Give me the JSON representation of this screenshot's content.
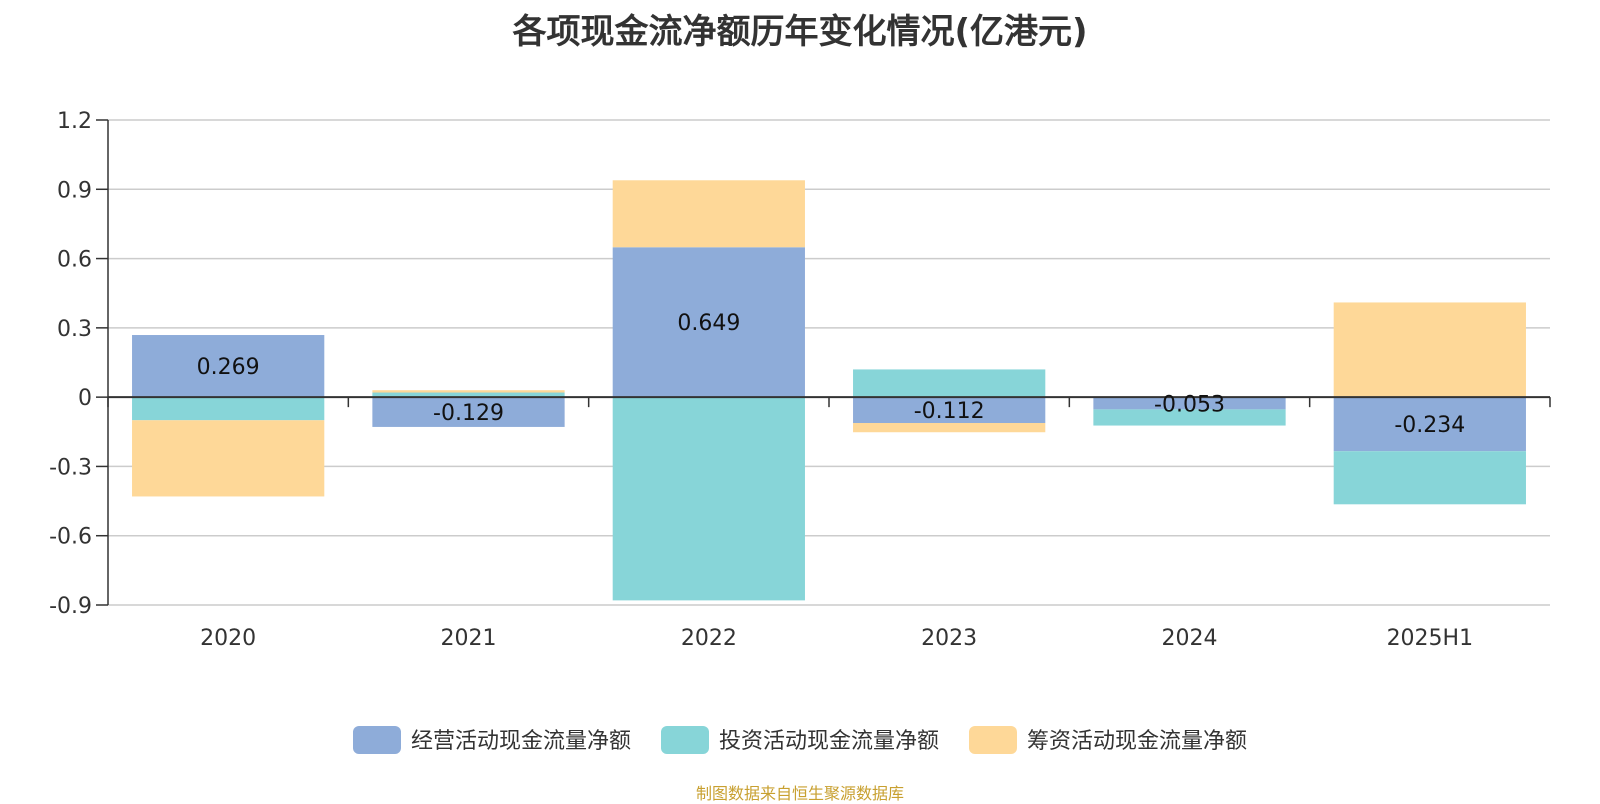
{
  "chart_data": {
    "type": "bar",
    "stacked": true,
    "title": "各项现金流净额历年变化情况(亿港元)",
    "categories": [
      "2020",
      "2021",
      "2022",
      "2023",
      "2024",
      "2025H1"
    ],
    "series": [
      {
        "name": "经营活动现金流量净额",
        "color": "#8eacd9",
        "values": [
          0.269,
          -0.129,
          0.649,
          -0.112,
          -0.053,
          -0.234
        ]
      },
      {
        "name": "投资活动现金流量净额",
        "color": "#87d5d8",
        "values": [
          -0.1,
          0.02,
          -0.88,
          0.12,
          -0.07,
          -0.23
        ]
      },
      {
        "name": "筹资活动现金流量净额",
        "color": "#fed898",
        "values": [
          -0.33,
          0.01,
          0.29,
          -0.04,
          0.0,
          0.41
        ]
      }
    ],
    "data_labels": [
      "0.269",
      "-0.129",
      "0.649",
      "-0.112",
      "-0.053",
      "-0.234"
    ],
    "yticks": [
      "1.2",
      "0.9",
      "0.6",
      "0.3",
      "0",
      "-0.3",
      "-0.6",
      "-0.9"
    ],
    "ylim": [
      -0.9,
      1.2
    ],
    "grid": true,
    "legend_position": "bottom-center",
    "source": "制图数据来自恒生聚源数据库"
  }
}
